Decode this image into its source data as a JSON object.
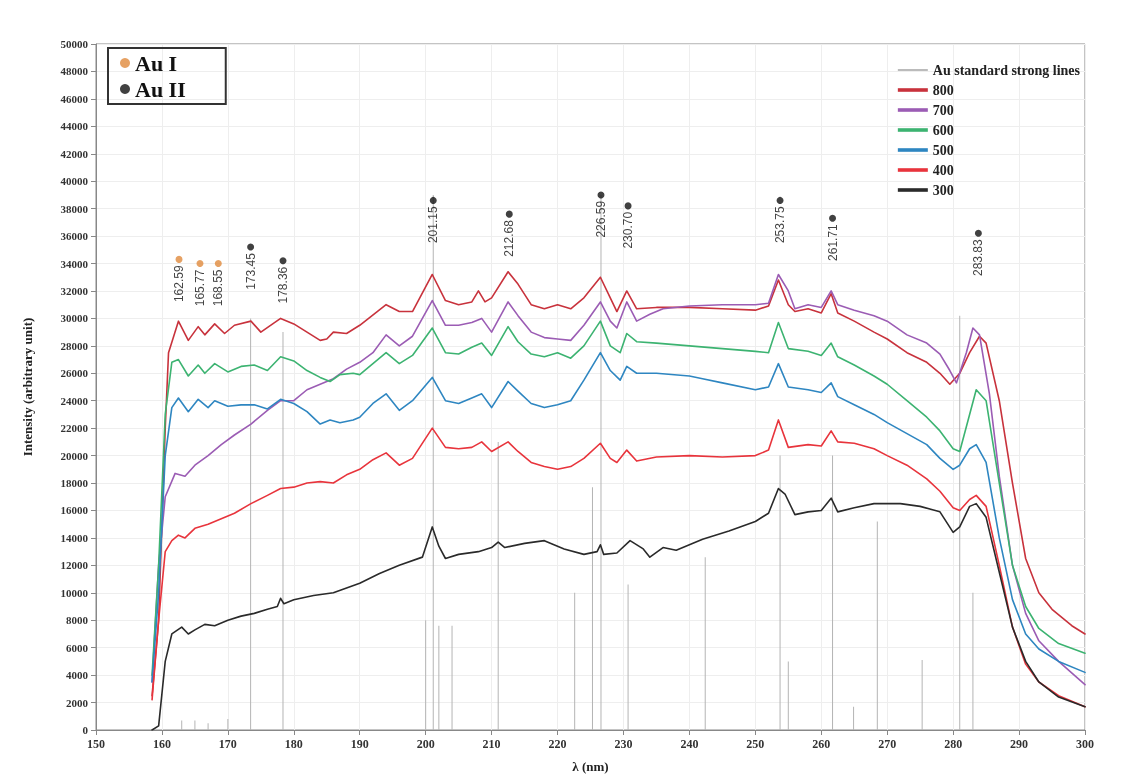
{
  "chart_data": {
    "type": "line",
    "xlabel": "λ (nm)",
    "ylabel": "Intensity (arbitrary unit)",
    "xlim": [
      150,
      300
    ],
    "xticks": [
      150,
      160,
      170,
      180,
      190,
      200,
      210,
      220,
      230,
      240,
      250,
      260,
      270,
      280,
      290,
      300
    ],
    "ylim": [
      0,
      50000
    ],
    "yticks": [
      0,
      2000,
      4000,
      6000,
      8000,
      10000,
      12000,
      14000,
      16000,
      18000,
      20000,
      22000,
      24000,
      26000,
      28000,
      30000,
      32000,
      34000,
      36000,
      38000,
      40000,
      42000,
      44000,
      46000,
      48000,
      50000
    ],
    "grid": true,
    "legend": "top right",
    "marker": "none",
    "line_style": "solid",
    "series": [
      {
        "name": "Au standard strong lines",
        "type": "bar",
        "color": "#b4b4b4",
        "x": [
          163,
          165,
          167,
          170,
          173.45,
          178.36,
          200,
          201.15,
          202,
          204,
          211,
          222.6,
          225.3,
          226.59,
          230.7,
          242.4,
          253.75,
          255,
          261.71,
          264.9,
          268.5,
          275.3,
          281,
          283
        ],
        "values": [
          700,
          700,
          500,
          800,
          30000,
          29000,
          8000,
          39000,
          7600,
          7600,
          21000,
          10000,
          17700,
          39000,
          10600,
          12600,
          20000,
          5000,
          20000,
          1700,
          15200,
          5100,
          30200,
          10000
        ]
      },
      {
        "name": "800",
        "color": "#c8323c",
        "x": [
          158.5,
          159.5,
          160.5,
          161,
          162.5,
          164,
          165.5,
          166.5,
          168,
          169.5,
          171,
          173.5,
          175,
          178,
          180,
          182,
          184,
          185,
          186,
          188,
          190,
          194,
          196,
          198,
          201,
          203,
          205,
          207,
          208,
          209,
          210,
          212.5,
          214,
          216,
          218,
          220,
          222,
          224,
          226.5,
          228,
          229,
          230.5,
          232,
          235,
          240,
          245,
          250,
          252,
          253.5,
          255,
          256,
          258,
          260,
          261.5,
          262.5,
          265,
          268,
          270,
          273,
          276,
          278,
          279.5,
          281,
          282.5,
          284,
          285,
          287,
          289,
          291,
          293,
          295,
          298,
          300
        ],
        "values": [
          2500,
          8000,
          22000,
          27500,
          29800,
          28400,
          29400,
          28800,
          29600,
          28900,
          29500,
          29800,
          29000,
          30000,
          29600,
          29000,
          28400,
          28500,
          29000,
          28900,
          29500,
          31000,
          30500,
          30500,
          33200,
          31300,
          31000,
          31200,
          32000,
          31200,
          31500,
          33400,
          32500,
          31000,
          30700,
          31000,
          30700,
          31500,
          33000,
          31500,
          30500,
          32000,
          30700,
          30800,
          30800,
          30700,
          30600,
          30900,
          32800,
          31000,
          30500,
          30700,
          30400,
          31800,
          30400,
          29800,
          29000,
          28500,
          27500,
          26800,
          26000,
          25200,
          26000,
          27500,
          28700,
          28200,
          24000,
          18000,
          12500,
          10000,
          8800,
          7600,
          7000
        ]
      },
      {
        "name": "700",
        "color": "#9b5cb4",
        "x": [
          158.5,
          159.5,
          160.5,
          162,
          163.5,
          165,
          167,
          169,
          171,
          173.5,
          176,
          178,
          180,
          182,
          184,
          186,
          188,
          190,
          192,
          194,
          196,
          198,
          201,
          203,
          205,
          207,
          208.5,
          210,
          212.5,
          214,
          216,
          218,
          220,
          222,
          224,
          226.5,
          228,
          229,
          230.5,
          232,
          234,
          236,
          240,
          245,
          250,
          252,
          253.5,
          255,
          256,
          258,
          260,
          261.5,
          262.5,
          265,
          268,
          270,
          273,
          276,
          278,
          279.5,
          280.5,
          282,
          283,
          284,
          285.5,
          287,
          289,
          291,
          293,
          296,
          300
        ],
        "values": [
          3500,
          12000,
          17000,
          18700,
          18500,
          19300,
          20000,
          20800,
          21500,
          22300,
          23300,
          24000,
          24000,
          24800,
          25200,
          25600,
          26300,
          26800,
          27500,
          28800,
          28000,
          28700,
          31300,
          29500,
          29500,
          29700,
          30000,
          29000,
          31200,
          30200,
          29000,
          28600,
          28500,
          28400,
          29500,
          31200,
          29800,
          29300,
          31200,
          29800,
          30300,
          30700,
          30900,
          31000,
          31000,
          31100,
          33200,
          32000,
          30700,
          31000,
          30800,
          32000,
          31000,
          30600,
          30200,
          29800,
          28800,
          28200,
          27400,
          26200,
          25300,
          27500,
          29300,
          28800,
          24500,
          18500,
          12000,
          8500,
          6500,
          5000,
          3300
        ]
      },
      {
        "name": "600",
        "color": "#3cb371",
        "x": [
          158.5,
          159.5,
          160.5,
          161.5,
          162.5,
          164,
          165.5,
          166.5,
          168,
          170,
          172,
          174,
          176,
          178,
          180,
          182,
          184,
          185.5,
          187,
          189,
          190,
          192,
          194,
          196,
          198,
          201,
          203,
          205,
          207,
          208.5,
          210,
          212.5,
          214,
          216,
          218,
          220,
          222,
          224,
          226.5,
          228,
          229.5,
          230.5,
          232,
          235,
          240,
          245,
          250,
          252,
          253.5,
          255,
          258,
          260,
          261.5,
          262.5,
          265,
          268,
          270,
          273,
          276,
          278,
          280,
          281,
          282.5,
          283.5,
          285,
          287,
          289,
          291,
          293,
          296,
          300
        ],
        "values": [
          4000,
          12000,
          23000,
          26800,
          27000,
          25800,
          26600,
          26000,
          26700,
          26100,
          26500,
          26600,
          26200,
          27200,
          26900,
          26200,
          25700,
          25400,
          25900,
          26000,
          25900,
          26700,
          27500,
          26700,
          27300,
          29300,
          27500,
          27400,
          27900,
          28200,
          27300,
          29400,
          28300,
          27400,
          27200,
          27500,
          27100,
          28000,
          29800,
          28000,
          27500,
          28900,
          28300,
          28200,
          28000,
          27800,
          27600,
          27500,
          29700,
          27800,
          27600,
          27300,
          28200,
          27200,
          26600,
          25800,
          25200,
          24000,
          22800,
          21800,
          20500,
          20300,
          23000,
          24800,
          24000,
          18000,
          12000,
          9000,
          7400,
          6300,
          5600
        ]
      },
      {
        "name": "500",
        "color": "#2e86c1",
        "x": [
          158.5,
          159.5,
          160.5,
          161.5,
          162.5,
          164,
          165.5,
          167,
          168,
          170,
          172,
          174,
          176,
          178,
          180,
          182,
          184,
          185.5,
          187,
          189,
          190,
          192,
          194,
          196,
          198,
          201,
          203,
          205,
          207,
          208.5,
          210,
          212.5,
          214,
          216,
          218,
          220,
          222,
          224,
          226.5,
          228,
          229.5,
          230.5,
          232,
          235,
          240,
          242,
          245,
          250,
          252,
          253.5,
          255,
          258,
          260,
          261.5,
          262.5,
          265,
          268,
          270,
          273,
          276,
          278,
          280,
          281,
          282.5,
          283.5,
          285,
          287,
          289,
          291,
          293,
          296,
          300
        ],
        "values": [
          3500,
          10000,
          20000,
          23500,
          24200,
          23200,
          24100,
          23500,
          24000,
          23600,
          23700,
          23700,
          23400,
          24100,
          23800,
          23200,
          22300,
          22600,
          22400,
          22600,
          22800,
          23800,
          24500,
          23300,
          24000,
          25700,
          24000,
          23800,
          24200,
          24500,
          23500,
          25400,
          24700,
          23800,
          23500,
          23700,
          24000,
          25500,
          27500,
          26200,
          25500,
          26500,
          26000,
          26000,
          25800,
          25600,
          25300,
          24800,
          25000,
          26700,
          25000,
          24800,
          24600,
          25300,
          24300,
          23700,
          23000,
          22400,
          21600,
          20800,
          19800,
          19000,
          19300,
          20500,
          20800,
          19500,
          14000,
          9500,
          7000,
          5900,
          5000,
          4200
        ]
      },
      {
        "name": "400",
        "color": "#e8343c",
        "x": [
          158.5,
          159.5,
          160.5,
          161.5,
          162.5,
          163.5,
          165,
          167,
          169,
          171,
          173.5,
          176,
          178,
          180,
          182,
          184,
          186,
          188,
          190,
          192,
          194,
          196,
          198,
          201,
          203,
          205,
          207,
          208.5,
          210,
          212.5,
          214,
          216,
          218,
          220,
          222,
          224,
          226.5,
          228,
          229,
          230.5,
          232,
          235,
          240,
          245,
          250,
          252,
          253.5,
          255,
          258,
          260,
          261.5,
          262.5,
          265,
          268,
          270,
          273,
          276,
          278,
          280,
          281,
          282.5,
          283.5,
          285,
          287,
          289,
          291,
          293,
          296,
          300
        ],
        "values": [
          2200,
          8000,
          13000,
          13800,
          14200,
          14000,
          14700,
          15000,
          15400,
          15800,
          16500,
          17100,
          17600,
          17700,
          18000,
          18100,
          18000,
          18600,
          19000,
          19700,
          20200,
          19300,
          19800,
          22000,
          20600,
          20500,
          20600,
          21000,
          20300,
          21000,
          20300,
          19500,
          19200,
          19000,
          19200,
          19800,
          20900,
          19800,
          19500,
          20400,
          19600,
          19900,
          20000,
          19900,
          20000,
          20400,
          22600,
          20600,
          20800,
          20700,
          21800,
          21000,
          20900,
          20500,
          20000,
          19300,
          18300,
          17400,
          16200,
          16000,
          16800,
          17100,
          16300,
          12000,
          7500,
          4800,
          3500,
          2500,
          1700
        ]
      },
      {
        "name": "300",
        "color": "#2a2a2a",
        "x": [
          158.5,
          159.5,
          160.5,
          161.5,
          163,
          164,
          165,
          166.5,
          168,
          170,
          172,
          174,
          176,
          177.5,
          178,
          178.5,
          180,
          183,
          186,
          190,
          193,
          196,
          199.5,
          201,
          202,
          203,
          205,
          208,
          210,
          211,
          212,
          215,
          218,
          221,
          224,
          226,
          226.5,
          227,
          229,
          231,
          233,
          234,
          236,
          238,
          242,
          246,
          250,
          252,
          253.5,
          254.5,
          256,
          258,
          260,
          261.5,
          262.5,
          265,
          268,
          272,
          275,
          278,
          280,
          281,
          282.5,
          283.5,
          285,
          287,
          289,
          291,
          293,
          296,
          300
        ],
        "values": [
          0,
          300,
          5000,
          7000,
          7500,
          7000,
          7300,
          7700,
          7600,
          8000,
          8300,
          8500,
          8800,
          9000,
          9600,
          9200,
          9500,
          9800,
          10000,
          10700,
          11400,
          12000,
          12600,
          14800,
          13400,
          12500,
          12800,
          13000,
          13300,
          13700,
          13300,
          13600,
          13800,
          13200,
          12800,
          13000,
          13500,
          12800,
          12900,
          13800,
          13200,
          12600,
          13300,
          13100,
          13900,
          14500,
          15200,
          15800,
          17600,
          17200,
          15700,
          15900,
          16000,
          16900,
          15900,
          16200,
          16500,
          16500,
          16300,
          15900,
          14400,
          14800,
          16300,
          16500,
          15500,
          11500,
          7500,
          5000,
          3500,
          2400,
          1700
        ]
      },
      {
        "name": "Au I",
        "type": "scatter",
        "marker": "circle",
        "color": "#e08a3c",
        "x": [
          162.59,
          165.77,
          168.55
        ],
        "values": [
          34300,
          34000,
          34000
        ]
      },
      {
        "name": "Au II",
        "type": "scatter",
        "marker": "circle",
        "color": "#111111",
        "x": [
          173.45,
          178.36,
          201.15,
          212.68,
          226.59,
          230.7,
          253.75,
          261.71,
          283.83
        ],
        "values": [
          35200,
          34200,
          38600,
          37600,
          39000,
          38200,
          38600,
          37300,
          36200
        ]
      }
    ],
    "annotations": [
      {
        "text": "162.59",
        "x": 162.59,
        "y": 34300
      },
      {
        "text": "165.77",
        "x": 165.77,
        "y": 34000
      },
      {
        "text": "168.55",
        "x": 168.55,
        "y": 34000
      },
      {
        "text": "173.45",
        "x": 173.45,
        "y": 35200
      },
      {
        "text": "178.36",
        "x": 178.36,
        "y": 34200
      },
      {
        "text": "201.15",
        "x": 201.15,
        "y": 38600
      },
      {
        "text": "212.68",
        "x": 212.68,
        "y": 37600
      },
      {
        "text": "226.59",
        "x": 226.59,
        "y": 39000
      },
      {
        "text": "230.70",
        "x": 230.7,
        "y": 38200
      },
      {
        "text": "253.75",
        "x": 253.75,
        "y": 38600
      },
      {
        "text": "261.71",
        "x": 261.71,
        "y": 37300
      },
      {
        "text": "283.83",
        "x": 283.83,
        "y": 36200
      }
    ]
  }
}
